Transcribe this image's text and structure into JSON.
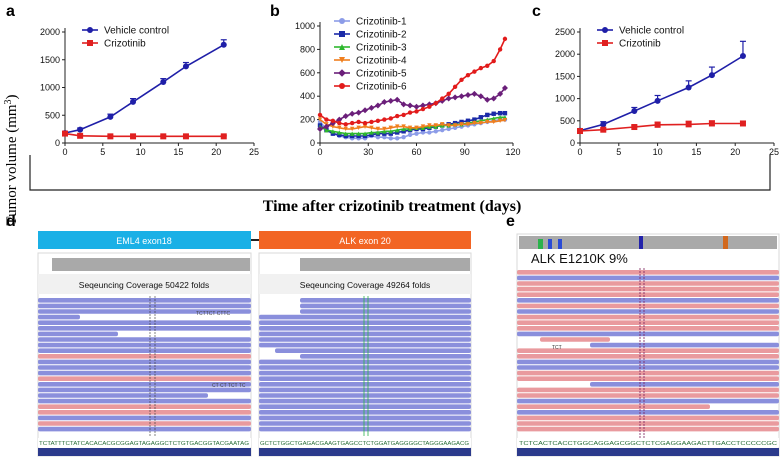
{
  "figure": {
    "shared_xlabel": "Time after crizotinib treatment (days)",
    "panel_d": {
      "label": "d",
      "left_track": "EML4 exon18",
      "right_track": "ALK exon 20",
      "left_coverage": "Seqeuncing Coverage 50422 folds",
      "right_coverage": "Seqeuncing Coverage 49264 folds",
      "left_read_text": "TCTTCT CTTC",
      "left_read_text2": "CT CT TCT TC",
      "left_seq": "TCTATTTCTATCACACACGCGGAGTAGAGGCTCTGTGACGGTACGAATAG",
      "right_seq": "GCTCTGGCTGAGACGAAGTGAGCCTCTGGATGAGGGGCTAGGGAAGACG",
      "colors": {
        "eml4": "#1ab0e6",
        "alk": "#f26524",
        "read_blue": "#8a8fdc",
        "read_pink": "#e99a9e"
      }
    },
    "panel_e": {
      "label": "e",
      "mutation": "ALK E1210K 9%",
      "read_text": "TCT",
      "seq": "TCTCACTCACCTGGCAGGAGCGGCTCTCGAGGAAGACTTGACCTCCCCCGC"
    }
  },
  "chart_data": [
    {
      "panel": "a",
      "type": "line",
      "ylabel": "Tumor volume (mm³)",
      "ylabel_main": "Tumor volume (mm",
      "ylabel_sup": "3",
      "ylabel_end": ")",
      "xlim": [
        0,
        25
      ],
      "ylim": [
        0,
        2000
      ],
      "xticks": [
        0,
        5,
        10,
        15,
        20,
        25
      ],
      "yticks": [
        0,
        500,
        1000,
        1500,
        2000
      ],
      "legend_position": "top-left",
      "series": [
        {
          "name": "Vehicle control",
          "color": "#1f1fa8",
          "marker": "circle",
          "x": [
            0,
            2,
            6,
            9,
            13,
            16,
            21
          ],
          "y": [
            180,
            240,
            470,
            740,
            1100,
            1380,
            1770
          ],
          "err": [
            20,
            30,
            50,
            60,
            60,
            70,
            90
          ]
        },
        {
          "name": "Crizotinib",
          "color": "#e02020",
          "marker": "square",
          "x": [
            0,
            2,
            6,
            9,
            13,
            16,
            21
          ],
          "y": [
            170,
            130,
            120,
            120,
            120,
            120,
            120
          ],
          "err": [
            10,
            10,
            10,
            10,
            10,
            10,
            10
          ]
        }
      ]
    },
    {
      "panel": "b",
      "type": "line",
      "xlim": [
        0,
        120
      ],
      "ylim": [
        0,
        1000
      ],
      "xticks": [
        0,
        30,
        60,
        90,
        120
      ],
      "yticks": [
        0,
        200,
        400,
        600,
        800,
        1000
      ],
      "legend_position": "top-left",
      "series": [
        {
          "name": "Crizotinib-1",
          "color": "#8c9ce8",
          "marker": "circle",
          "x": [
            0,
            4,
            8,
            12,
            16,
            20,
            24,
            28,
            32,
            36,
            40,
            44,
            48,
            52,
            56,
            60,
            64,
            68,
            72,
            76,
            80,
            84,
            88,
            92,
            96,
            100,
            104,
            108,
            112,
            115
          ],
          "y": [
            180,
            120,
            80,
            60,
            50,
            40,
            40,
            40,
            60,
            50,
            50,
            40,
            40,
            50,
            70,
            80,
            90,
            90,
            100,
            110,
            120,
            130,
            140,
            150,
            160,
            170,
            180,
            190,
            200,
            200
          ]
        },
        {
          "name": "Crizotinib-2",
          "color": "#1b2aa8",
          "marker": "square",
          "x": [
            0,
            4,
            8,
            12,
            16,
            20,
            24,
            28,
            32,
            36,
            40,
            44,
            48,
            52,
            56,
            60,
            64,
            68,
            72,
            76,
            80,
            84,
            88,
            92,
            96,
            100,
            104,
            108,
            112,
            115
          ],
          "y": [
            150,
            110,
            80,
            70,
            60,
            60,
            60,
            60,
            70,
            80,
            80,
            80,
            90,
            100,
            110,
            120,
            120,
            130,
            140,
            150,
            160,
            170,
            180,
            190,
            200,
            220,
            240,
            250,
            255,
            255
          ]
        },
        {
          "name": "Crizotinib-3",
          "color": "#2eb82e",
          "marker": "triangle",
          "x": [
            0,
            4,
            8,
            12,
            16,
            20,
            24,
            28,
            32,
            36,
            40,
            44,
            48,
            52,
            56,
            60,
            64,
            68,
            72,
            76,
            80,
            84,
            88,
            92,
            96,
            100,
            104,
            108,
            112,
            115
          ],
          "y": [
            140,
            110,
            100,
            90,
            80,
            80,
            80,
            80,
            90,
            90,
            100,
            100,
            110,
            120,
            120,
            130,
            130,
            140,
            140,
            150,
            150,
            160,
            160,
            170,
            180,
            190,
            200,
            210,
            220,
            220
          ]
        },
        {
          "name": "Crizotinib-4",
          "color": "#f07f1e",
          "marker": "triangle-down",
          "x": [
            0,
            4,
            8,
            12,
            16,
            20,
            24,
            28,
            32,
            36,
            40,
            44,
            48,
            52,
            56,
            60,
            64,
            68,
            72,
            76,
            80,
            84,
            88,
            92,
            96,
            100,
            104,
            108,
            112,
            115
          ],
          "y": [
            200,
            160,
            140,
            130,
            120,
            120,
            130,
            140,
            130,
            120,
            120,
            130,
            140,
            140,
            130,
            130,
            140,
            150,
            150,
            160,
            150,
            150,
            160,
            160,
            170,
            170,
            180,
            180,
            190,
            195
          ]
        },
        {
          "name": "Crizotinib-5",
          "color": "#6b1f7a",
          "marker": "diamond",
          "x": [
            0,
            4,
            8,
            12,
            16,
            20,
            24,
            28,
            32,
            36,
            40,
            44,
            48,
            52,
            56,
            60,
            64,
            68,
            72,
            76,
            80,
            84,
            88,
            92,
            96,
            100,
            104,
            108,
            112,
            115
          ],
          "y": [
            120,
            140,
            170,
            200,
            230,
            250,
            260,
            280,
            300,
            320,
            350,
            360,
            370,
            330,
            320,
            310,
            320,
            330,
            340,
            360,
            380,
            390,
            400,
            410,
            420,
            400,
            370,
            380,
            420,
            470
          ]
        },
        {
          "name": "Crizotinib-6",
          "color": "#e21b1b",
          "marker": "circle",
          "x": [
            0,
            4,
            8,
            12,
            16,
            20,
            24,
            28,
            32,
            36,
            40,
            44,
            48,
            52,
            56,
            60,
            64,
            68,
            72,
            76,
            80,
            84,
            88,
            92,
            96,
            100,
            104,
            108,
            112,
            115
          ],
          "y": [
            240,
            200,
            190,
            170,
            160,
            170,
            180,
            170,
            180,
            190,
            200,
            210,
            230,
            240,
            260,
            270,
            290,
            310,
            340,
            380,
            420,
            480,
            540,
            580,
            610,
            640,
            660,
            700,
            800,
            890
          ]
        }
      ]
    },
    {
      "panel": "c",
      "type": "line",
      "xlim": [
        0,
        25
      ],
      "ylim": [
        0,
        2500
      ],
      "xticks": [
        0,
        5,
        10,
        15,
        20,
        25
      ],
      "yticks": [
        0,
        500,
        1000,
        1500,
        2000,
        2500
      ],
      "legend_position": "top-left",
      "series": [
        {
          "name": "Vehicle control",
          "color": "#1f1fa8",
          "marker": "circle",
          "x": [
            0,
            3,
            7,
            10,
            14,
            17,
            21
          ],
          "y": [
            280,
            420,
            720,
            950,
            1250,
            1530,
            1960
          ],
          "err": [
            30,
            60,
            80,
            120,
            150,
            180,
            330
          ]
        },
        {
          "name": "Crizotinib",
          "color": "#e02020",
          "marker": "square",
          "x": [
            0,
            3,
            7,
            10,
            14,
            17,
            21
          ],
          "y": [
            270,
            300,
            360,
            410,
            420,
            440,
            440
          ],
          "err": [
            20,
            30,
            40,
            60,
            70,
            60,
            50
          ]
        }
      ]
    }
  ]
}
